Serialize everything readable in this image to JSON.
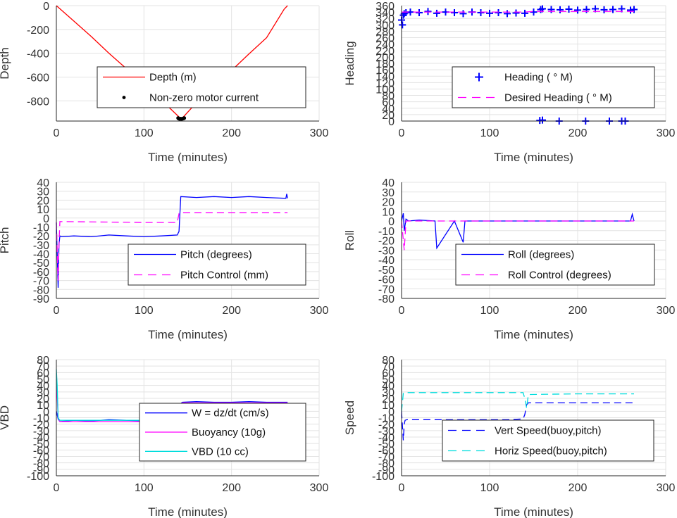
{
  "chart_data": [
    {
      "type": "line",
      "ylabel": "Depth",
      "xlabel": "Time (minutes)",
      "xlim": [
        0,
        300
      ],
      "ylim": [
        -970,
        0
      ],
      "xticks": [
        0,
        100,
        200,
        300
      ],
      "yticks": [
        0,
        -200,
        -400,
        -600,
        -800
      ],
      "grid": true,
      "legend_position": "lower-right",
      "series": [
        {
          "name": "Depth (m)",
          "color": "#ff0000",
          "style": "solid",
          "x": [
            0,
            20,
            40,
            60,
            80,
            100,
            120,
            140,
            142,
            145,
            160,
            180,
            200,
            220,
            240,
            260,
            264
          ],
          "y": [
            0,
            -130,
            -260,
            -400,
            -530,
            -660,
            -795,
            -935,
            -950,
            -935,
            -815,
            -680,
            -545,
            -405,
            -270,
            -30,
            0
          ]
        },
        {
          "name": "Non-zero motor current",
          "color": "#000000",
          "style": "marker",
          "x": [
            139,
            140,
            141,
            142,
            143,
            144,
            145,
            146
          ],
          "y": [
            -945,
            -950,
            -952,
            -950,
            -952,
            -950,
            -948,
            -945
          ]
        }
      ]
    },
    {
      "type": "scatter",
      "ylabel": "Heading",
      "xlabel": "Time (minutes)",
      "xlim": [
        0,
        300
      ],
      "ylim": [
        0,
        360
      ],
      "xticks": [
        0,
        100,
        200,
        300
      ],
      "yticks": [
        0,
        20,
        40,
        60,
        80,
        100,
        120,
        140,
        160,
        180,
        200,
        220,
        240,
        260,
        280,
        300,
        320,
        340,
        360
      ],
      "grid": true,
      "legend_position": "lower-right",
      "series": [
        {
          "name": "Heading (   ° M)",
          "color": "#0000ff",
          "style": "plus",
          "x": [
            0,
            1,
            2,
            3,
            5,
            10,
            20,
            30,
            40,
            50,
            60,
            70,
            80,
            90,
            100,
            110,
            120,
            130,
            140,
            150,
            158,
            160,
            170,
            180,
            190,
            200,
            210,
            220,
            230,
            240,
            250,
            260,
            264,
            157,
            160,
            179,
            209,
            236,
            250,
            254
          ],
          "y": [
            315,
            300,
            330,
            335,
            338,
            340,
            338,
            342,
            336,
            340,
            338,
            335,
            340,
            338,
            336,
            338,
            335,
            337,
            336,
            340,
            348,
            350,
            348,
            347,
            349,
            346,
            348,
            350,
            347,
            348,
            350,
            346,
            348,
            2,
            3,
            0,
            0,
            0,
            0,
            0
          ]
        },
        {
          "name": "Desired Heading (    ° M)",
          "color": "#ff00ff",
          "style": "dashed",
          "x": [
            0,
            140,
            150,
            264
          ],
          "y": [
            340,
            340,
            342,
            342
          ]
        }
      ]
    },
    {
      "type": "line",
      "ylabel": "Pitch",
      "xlabel": "Time (minutes)",
      "xlim": [
        0,
        300
      ],
      "ylim": [
        -90,
        40
      ],
      "xticks": [
        0,
        100,
        200,
        300
      ],
      "yticks": [
        40,
        30,
        20,
        10,
        0,
        -10,
        -20,
        -30,
        -40,
        -50,
        -60,
        -70,
        -80,
        -90
      ],
      "grid": true,
      "legend_position": "lower-right",
      "series": [
        {
          "name": "Pitch (degrees)",
          "color": "#0000ff",
          "style": "solid",
          "x": [
            0,
            2,
            3,
            4,
            6,
            20,
            40,
            60,
            80,
            100,
            120,
            138,
            140,
            142,
            160,
            180,
            200,
            220,
            240,
            262,
            263,
            264
          ],
          "y": [
            -5,
            -78,
            -30,
            -20,
            -21,
            -20,
            -21,
            -19,
            -20,
            -21,
            -20,
            -19,
            -15,
            24,
            23,
            24,
            23,
            24,
            23,
            22,
            27,
            22
          ]
        },
        {
          "name": "Pitch Control (mm)",
          "color": "#ff00ff",
          "style": "dashed",
          "x": [
            0,
            2,
            3,
            4,
            100,
            138,
            140,
            142,
            200,
            264
          ],
          "y": [
            -5,
            -70,
            -30,
            -4,
            -5,
            -5,
            5,
            6,
            6,
            6
          ]
        }
      ]
    },
    {
      "type": "line",
      "ylabel": "Roll",
      "xlabel": "Time (minutes)",
      "xlim": [
        0,
        300
      ],
      "ylim": [
        -80,
        40
      ],
      "xticks": [
        0,
        100,
        200,
        300
      ],
      "yticks": [
        40,
        30,
        20,
        10,
        0,
        -10,
        -20,
        -30,
        -40,
        -50,
        -60,
        -70,
        -80
      ],
      "grid": true,
      "legend_position": "lower-right",
      "series": [
        {
          "name": "Roll (degrees)",
          "color": "#0000ff",
          "style": "solid",
          "x": [
            0,
            2,
            3,
            5,
            8,
            20,
            38,
            40,
            60,
            70,
            72,
            90,
            100,
            140,
            150,
            260,
            262,
            264
          ],
          "y": [
            0,
            8,
            -10,
            2,
            0,
            1,
            0,
            -28,
            0,
            -22,
            0,
            0,
            0,
            0,
            0,
            0,
            7,
            0
          ]
        },
        {
          "name": "Roll Control (degrees)",
          "color": "#ff00ff",
          "style": "dashed",
          "x": [
            0,
            3,
            5,
            8,
            100,
            200,
            264
          ],
          "y": [
            0,
            -30,
            0,
            0,
            0,
            0,
            0
          ]
        }
      ]
    },
    {
      "type": "line",
      "ylabel": "VBD",
      "xlabel": "Time (minutes)",
      "xlim": [
        0,
        300
      ],
      "ylim": [
        -100,
        80
      ],
      "xticks": [
        0,
        100,
        200,
        300
      ],
      "yticks": [
        80,
        70,
        60,
        50,
        40,
        30,
        20,
        10,
        0,
        -10,
        -20,
        -30,
        -40,
        -50,
        -60,
        -70,
        -80,
        -90,
        -100
      ],
      "grid": true,
      "legend_position": "lower-right",
      "series": [
        {
          "name": "W = dz/dt (cm/s)",
          "color": "#0000ff",
          "style": "solid",
          "x": [
            0,
            2,
            4,
            20,
            40,
            60,
            80,
            100,
            120,
            138,
            140,
            142,
            144,
            160,
            180,
            200,
            220,
            240,
            264
          ],
          "y": [
            0,
            -12,
            -16,
            -14,
            -15,
            -13,
            -14,
            -15,
            -14,
            -14,
            -5,
            12,
            14,
            15,
            14,
            14,
            15,
            14,
            14
          ]
        },
        {
          "name": "Buoyancy (10g)",
          "color": "#ff00ff",
          "style": "solid",
          "x": [
            0,
            2,
            4,
            100,
            138,
            142,
            144,
            200,
            264
          ],
          "y": [
            50,
            -10,
            -16,
            -16,
            -16,
            0,
            13,
            13,
            13
          ]
        },
        {
          "name": "VBD (10 cc)",
          "color": "#00dddd",
          "style": "solid",
          "x": [
            0,
            1,
            2,
            4,
            100,
            138,
            140,
            142,
            144,
            200,
            264
          ],
          "y": [
            65,
            40,
            -10,
            -14,
            -14,
            -14,
            -5,
            5,
            12,
            12,
            12
          ]
        }
      ]
    },
    {
      "type": "line",
      "ylabel": "Speed",
      "xlabel": "Time (minutes)",
      "xlim": [
        0,
        300
      ],
      "ylim": [
        -100,
        80
      ],
      "xticks": [
        0,
        100,
        200,
        300
      ],
      "yticks": [
        80,
        70,
        60,
        50,
        40,
        30,
        20,
        10,
        0,
        -10,
        -20,
        -30,
        -40,
        -50,
        -60,
        -70,
        -80,
        -90,
        -100
      ],
      "grid": true,
      "legend_position": "lower-right",
      "series": [
        {
          "name": "Vert Speed(buoy,pitch)",
          "color": "#0000ff",
          "style": "dashed",
          "x": [
            0,
            2,
            3,
            4,
            6,
            40,
            80,
            120,
            138,
            140,
            142,
            144,
            180,
            220,
            264
          ],
          "y": [
            0,
            -45,
            -20,
            -14,
            -13,
            -13,
            -13,
            -13,
            -12,
            -5,
            10,
            13,
            13,
            13,
            13
          ]
        },
        {
          "name": "Horiz Speed(buoy,pitch)",
          "color": "#00dddd",
          "style": "dashed",
          "x": [
            0,
            2,
            4,
            60,
            138,
            140,
            142,
            144,
            200,
            264
          ],
          "y": [
            0,
            28,
            29,
            29,
            29,
            20,
            5,
            26,
            27,
            27
          ]
        }
      ]
    }
  ]
}
